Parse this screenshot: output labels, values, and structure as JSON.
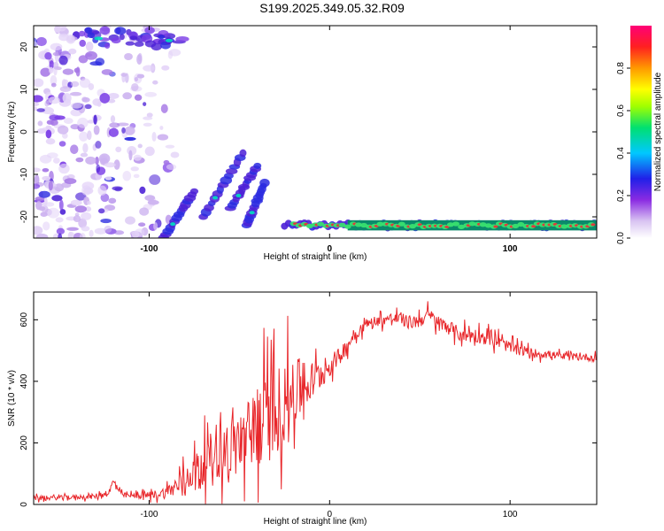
{
  "title": "S199.2025.349.05.32.R09",
  "colors": {
    "spectral_blob": "#7a3ce6",
    "ridge_core": "#e8303a",
    "snr_line": "#e8262a"
  },
  "chart_data": [
    {
      "type": "heatmap",
      "xlabel": "Height of straight line (km)",
      "ylabel": "Frequency (Hz)",
      "xlim": [
        -164,
        148
      ],
      "ylim": [
        -25,
        25
      ],
      "xticks": [
        -100,
        0,
        100
      ],
      "yticks": [
        -20,
        -10,
        0,
        10,
        20
      ],
      "colorbar": {
        "label": "Normalized spectral amplitude",
        "range": [
          0.0,
          1.0
        ],
        "ticks": [
          "0.0",
          "0.2",
          "0.4",
          "0.6",
          "0.8"
        ],
        "colormap": "rainbow (white - violet - blue - cyan - green - yellow - orange - red - magenta)"
      },
      "features": [
        {
          "name": "noise cloud",
          "x_range": [
            -164,
            -85
          ],
          "y_range": [
            -25,
            25
          ],
          "amplitude": 0.15
        },
        {
          "name": "upper-left cluster",
          "x_range": [
            -140,
            -80
          ],
          "y_range": [
            20,
            24
          ],
          "amplitude": 0.3
        },
        {
          "name": "rising streaks",
          "x_range": [
            -90,
            -35
          ],
          "y_range": [
            -25,
            -5
          ],
          "amplitude": 0.4
        },
        {
          "name": "horizontal ridge",
          "x_range": [
            -20,
            148
          ],
          "y": -22,
          "amplitude": 0.95
        }
      ]
    },
    {
      "type": "line",
      "xlabel": "Height of straight line (km)",
      "ylabel": "SNR (10 * v/v)",
      "xlim": [
        -164,
        148
      ],
      "ylim": [
        0,
        690
      ],
      "xticks": [
        -100,
        0,
        100
      ],
      "yticks": [
        0,
        200,
        400,
        600
      ],
      "series": [
        {
          "x": [
            -164,
            -150,
            -140,
            -130,
            -122,
            -120,
            -115,
            -110,
            -100,
            -95,
            -90,
            -85,
            -80,
            -75,
            -70,
            -65,
            -60,
            -55,
            -50,
            -45,
            -40,
            -35,
            -30,
            -25,
            -20,
            -15,
            -10,
            -5,
            0,
            5,
            10,
            15,
            20,
            25,
            30,
            35,
            40,
            45,
            50,
            55,
            60,
            65,
            70,
            75,
            80,
            85,
            90,
            95,
            100,
            105,
            110,
            115,
            120,
            125,
            130,
            135,
            140,
            148
          ],
          "y": [
            20,
            22,
            24,
            26,
            40,
            75,
            30,
            28,
            30,
            34,
            40,
            60,
            85,
            110,
            140,
            160,
            175,
            185,
            200,
            220,
            260,
            280,
            300,
            330,
            360,
            380,
            400,
            420,
            450,
            480,
            520,
            560,
            585,
            595,
            600,
            605,
            600,
            590,
            600,
            615,
            590,
            580,
            560,
            550,
            550,
            545,
            540,
            525,
            510,
            505,
            495,
            490,
            488,
            485,
            480,
            478,
            480,
            475
          ],
          "spread": [
            12,
            12,
            12,
            14,
            22,
            18,
            14,
            14,
            20,
            25,
            35,
            55,
            70,
            90,
            110,
            130,
            150,
            170,
            190,
            210,
            230,
            250,
            240,
            220,
            190,
            150,
            110,
            80,
            60,
            45,
            40,
            35,
            30,
            30,
            30,
            32,
            35,
            38,
            40,
            40,
            40,
            40,
            40,
            45,
            40,
            40,
            45,
            35,
            30,
            30,
            25,
            25,
            22,
            20,
            20,
            20,
            20,
            20
          ]
        }
      ]
    }
  ]
}
